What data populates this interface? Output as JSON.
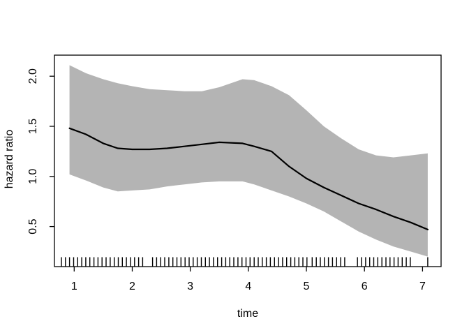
{
  "figure": {
    "background": "#ffffff",
    "band_color": "#b4b4b4",
    "line_color": "#000000",
    "axis_color": "#000000"
  },
  "chart_data": {
    "type": "line",
    "title": "",
    "xlabel": "time",
    "ylabel": "hazard ratio",
    "xlim": [
      0.66,
      7.32
    ],
    "ylim": [
      0.1,
      2.21
    ],
    "grid": false,
    "legend_position": "none",
    "x_tick_values": [
      1,
      2,
      3,
      4,
      5,
      6,
      7
    ],
    "x_tick_labels": [
      "1",
      "2",
      "3",
      "4",
      "5",
      "6",
      "7"
    ],
    "y_tick_values": [
      0.5,
      1.0,
      1.5,
      2.0
    ],
    "y_tick_labels": [
      "0.5",
      "1.0",
      "1.5",
      "2.0"
    ],
    "x": [
      0.92,
      1.2,
      1.5,
      1.75,
      2.0,
      2.3,
      2.6,
      2.9,
      3.2,
      3.5,
      3.9,
      4.1,
      4.4,
      4.7,
      5.0,
      5.3,
      5.6,
      5.9,
      6.2,
      6.5,
      6.8,
      7.09
    ],
    "series": [
      {
        "name": "fitted-hazard-ratio",
        "values": [
          1.48,
          1.42,
          1.33,
          1.28,
          1.27,
          1.27,
          1.28,
          1.3,
          1.32,
          1.34,
          1.33,
          1.3,
          1.25,
          1.1,
          0.98,
          0.89,
          0.81,
          0.73,
          0.67,
          0.6,
          0.54,
          0.47
        ]
      },
      {
        "name": "confidence-band-lower",
        "values": [
          1.02,
          0.96,
          0.89,
          0.85,
          0.86,
          0.87,
          0.9,
          0.92,
          0.94,
          0.95,
          0.95,
          0.92,
          0.86,
          0.8,
          0.73,
          0.65,
          0.55,
          0.45,
          0.37,
          0.3,
          0.25,
          0.2
        ]
      },
      {
        "name": "confidence-band-upper",
        "values": [
          2.11,
          2.03,
          1.97,
          1.93,
          1.9,
          1.87,
          1.86,
          1.85,
          1.85,
          1.89,
          1.97,
          1.96,
          1.9,
          1.81,
          1.66,
          1.5,
          1.38,
          1.27,
          1.21,
          1.19,
          1.21,
          1.23
        ]
      }
    ],
    "band": {
      "lower": "confidence-band-lower",
      "upper": "confidence-band-upper"
    },
    "rug_x": [
      0.78,
      0.85,
      0.92,
      0.99,
      1.06,
      1.13,
      1.2,
      1.27,
      1.34,
      1.41,
      1.48,
      1.55,
      1.62,
      1.69,
      1.76,
      1.83,
      1.9,
      1.97,
      2.04,
      2.11,
      2.18,
      2.35,
      2.42,
      2.49,
      2.56,
      2.63,
      2.7,
      2.77,
      2.84,
      2.91,
      2.98,
      3.05,
      3.12,
      3.19,
      3.26,
      3.33,
      3.4,
      3.47,
      3.54,
      3.61,
      3.68,
      3.75,
      3.82,
      3.89,
      3.96,
      4.03,
      4.1,
      4.17,
      4.24,
      4.31,
      4.38,
      4.45,
      4.52,
      4.59,
      4.66,
      4.73,
      4.8,
      4.87,
      4.94,
      5.01,
      5.1,
      5.17,
      5.24,
      5.31,
      5.38,
      5.45,
      5.52,
      5.59,
      5.66,
      5.88,
      5.95,
      6.02,
      6.09,
      6.16,
      6.23,
      6.3,
      6.37,
      6.44,
      6.51,
      6.58,
      6.65,
      6.72,
      6.79,
      7.09
    ]
  }
}
